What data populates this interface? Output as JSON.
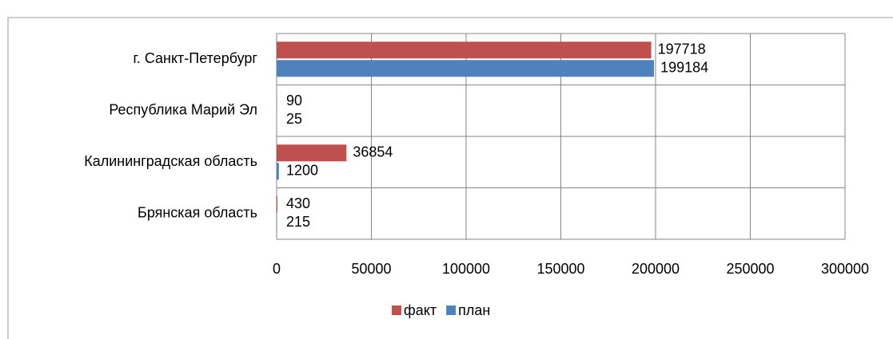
{
  "chart_data": {
    "type": "barh",
    "categories": [
      "г. Санкт-Петербург",
      "Республика Марий Эл",
      "Калининградская область",
      "Брянская область"
    ],
    "series": [
      {
        "name": "факт",
        "color": "#c0504d",
        "values": [
          197718,
          90,
          36854,
          430
        ]
      },
      {
        "name": "план",
        "color": "#4f81bd",
        "values": [
          199184,
          25,
          1200,
          215
        ]
      }
    ],
    "xlim": [
      0,
      300000
    ],
    "xticks": [
      0,
      50000,
      100000,
      150000,
      200000,
      250000,
      300000
    ],
    "grid": true,
    "legend": "bottom"
  }
}
